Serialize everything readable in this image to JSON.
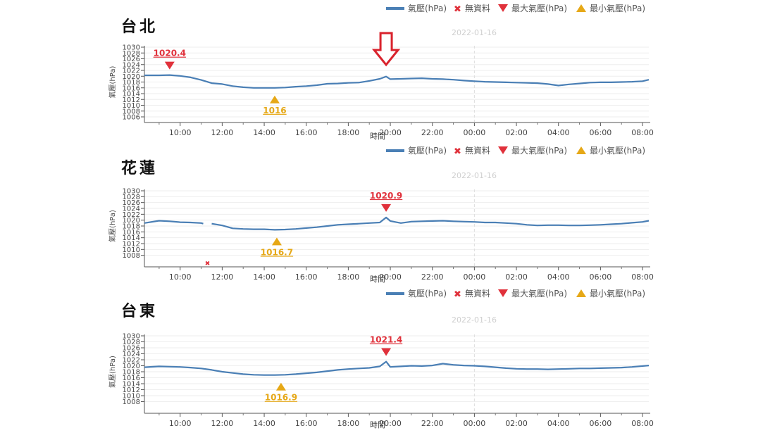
{
  "legend": {
    "series": "氣壓(hPa)",
    "missing": "無資料",
    "max": "最大氣壓(hPa)",
    "min": "最小氣壓(hPa)"
  },
  "colors": {
    "line": "#4a7fb5",
    "max": "#e0313b",
    "min": "#e6a817",
    "missing": "#e0313b"
  },
  "chart_data": [
    {
      "type": "line",
      "station": "台北",
      "date_label": "2022-01-16",
      "xlabel": "時間",
      "ylabel": "氣壓(hPa)",
      "xticks": [
        "10:00",
        "12:00",
        "14:00",
        "16:00",
        "18:00",
        "20:00",
        "22:00",
        "00:00",
        "02:00",
        "04:00",
        "06:00",
        "08:00"
      ],
      "yticks": [
        1006,
        1008,
        1010,
        1012,
        1014,
        1016,
        1018,
        1020,
        1022,
        1024,
        1026,
        1028,
        1030
      ],
      "xlim": [
        8.3,
        32.3
      ],
      "ylim": [
        1006,
        1030
      ],
      "x": [
        8.3,
        9.0,
        9.5,
        10.0,
        10.5,
        11.0,
        11.5,
        12.0,
        12.5,
        13.0,
        13.5,
        14.0,
        14.5,
        15.0,
        15.5,
        16.0,
        16.5,
        17.0,
        17.5,
        18.0,
        18.5,
        19.0,
        19.5,
        19.8,
        20.0,
        20.5,
        21.0,
        21.5,
        22.0,
        22.5,
        23.0,
        23.5,
        24.0,
        24.5,
        25.0,
        25.5,
        26.0,
        26.5,
        27.0,
        27.5,
        28.0,
        28.5,
        29.0,
        29.5,
        30.0,
        30.5,
        31.0,
        31.5,
        32.0,
        32.3
      ],
      "values": [
        1020.3,
        1020.3,
        1020.4,
        1020.1,
        1019.6,
        1018.7,
        1017.6,
        1017.3,
        1016.6,
        1016.2,
        1016.0,
        1016.0,
        1016.0,
        1016.1,
        1016.4,
        1016.6,
        1016.9,
        1017.4,
        1017.5,
        1017.7,
        1017.8,
        1018.4,
        1019.1,
        1019.9,
        1019.0,
        1019.1,
        1019.2,
        1019.3,
        1019.1,
        1019.0,
        1018.8,
        1018.5,
        1018.3,
        1018.1,
        1018.0,
        1017.9,
        1017.8,
        1017.7,
        1017.6,
        1017.3,
        1016.8,
        1017.2,
        1017.5,
        1017.8,
        1017.9,
        1017.9,
        1018.0,
        1018.1,
        1018.3,
        1018.8
      ],
      "max": {
        "label": "1020.4",
        "x": 9.5,
        "value": 1020.4
      },
      "min": {
        "label": "1016",
        "x": 14.5,
        "value": 1016.0
      },
      "highlight_arrow": {
        "x": 19.8
      },
      "missing": []
    },
    {
      "type": "line",
      "station": "花蓮",
      "date_label": "2022-01-16",
      "xlabel": "時間",
      "ylabel": "氣壓(hPa)",
      "xticks": [
        "10:00",
        "12:00",
        "14:00",
        "16:00",
        "18:00",
        "20:00",
        "22:00",
        "00:00",
        "02:00",
        "04:00",
        "06:00",
        "08:00"
      ],
      "yticks": [
        1008,
        1010,
        1012,
        1014,
        1016,
        1018,
        1020,
        1022,
        1024,
        1026,
        1028,
        1030
      ],
      "xlim": [
        8.3,
        32.3
      ],
      "ylim": [
        1006,
        1030
      ],
      "x": [
        8.3,
        9.0,
        9.5,
        10.0,
        10.5,
        11.0,
        11.1,
        null,
        11.5,
        12.0,
        12.5,
        13.0,
        13.5,
        14.0,
        14.5,
        15.0,
        15.5,
        16.0,
        16.5,
        17.0,
        17.5,
        18.0,
        18.5,
        19.0,
        19.5,
        19.8,
        20.0,
        20.5,
        21.0,
        21.5,
        22.0,
        22.5,
        23.0,
        23.5,
        24.0,
        24.5,
        25.0,
        25.5,
        26.0,
        26.5,
        27.0,
        27.5,
        28.0,
        28.5,
        29.0,
        29.5,
        30.0,
        30.5,
        31.0,
        31.5,
        32.0,
        32.3
      ],
      "values": [
        1019.0,
        1019.8,
        1019.6,
        1019.3,
        1019.2,
        1019.0,
        1018.8,
        null,
        1018.8,
        1018.2,
        1017.2,
        1017.0,
        1016.9,
        1016.9,
        1016.7,
        1016.8,
        1017.0,
        1017.3,
        1017.6,
        1018.0,
        1018.4,
        1018.6,
        1018.8,
        1019.0,
        1019.2,
        1020.9,
        1019.7,
        1019.0,
        1019.5,
        1019.6,
        1019.7,
        1019.8,
        1019.6,
        1019.5,
        1019.4,
        1019.2,
        1019.2,
        1019.0,
        1018.8,
        1018.4,
        1018.2,
        1018.3,
        1018.3,
        1018.2,
        1018.2,
        1018.3,
        1018.4,
        1018.6,
        1018.8,
        1019.1,
        1019.4,
        1019.8
      ],
      "max": {
        "label": "1020.9",
        "x": 19.8,
        "value": 1020.9
      },
      "min": {
        "label": "1016.7",
        "x": 14.6,
        "value": 1016.7
      },
      "missing": [
        {
          "x": 11.3
        }
      ]
    },
    {
      "type": "line",
      "station": "台東",
      "date_label": "2022-01-16",
      "xlabel": "時間",
      "ylabel": "氣壓(hPa)",
      "xticks": [
        "10:00",
        "12:00",
        "14:00",
        "16:00",
        "18:00",
        "20:00",
        "22:00",
        "00:00",
        "02:00",
        "04:00",
        "06:00",
        "08:00"
      ],
      "yticks": [
        1008,
        1010,
        1012,
        1014,
        1016,
        1018,
        1020,
        1022,
        1024,
        1026,
        1028,
        1030
      ],
      "xlim": [
        8.3,
        32.3
      ],
      "ylim": [
        1006,
        1030
      ],
      "x": [
        8.3,
        9.0,
        9.5,
        10.0,
        10.5,
        11.0,
        11.5,
        12.0,
        12.5,
        13.0,
        13.5,
        14.0,
        14.5,
        15.0,
        15.5,
        16.0,
        16.5,
        17.0,
        17.5,
        18.0,
        18.5,
        19.0,
        19.5,
        19.8,
        20.0,
        20.5,
        21.0,
        21.5,
        22.0,
        22.5,
        23.0,
        23.5,
        24.0,
        24.5,
        25.0,
        25.5,
        26.0,
        26.5,
        27.0,
        27.5,
        28.0,
        28.5,
        29.0,
        29.5,
        30.0,
        30.5,
        31.0,
        31.5,
        32.0,
        32.3
      ],
      "values": [
        1019.5,
        1019.8,
        1019.7,
        1019.6,
        1019.4,
        1019.1,
        1018.6,
        1018.0,
        1017.6,
        1017.2,
        1017.0,
        1016.9,
        1016.9,
        1017.0,
        1017.2,
        1017.5,
        1017.8,
        1018.2,
        1018.6,
        1018.9,
        1019.1,
        1019.3,
        1019.8,
        1021.4,
        1019.6,
        1019.8,
        1020.0,
        1019.9,
        1020.1,
        1020.7,
        1020.3,
        1020.1,
        1020.0,
        1019.8,
        1019.5,
        1019.2,
        1019.0,
        1018.9,
        1018.9,
        1018.8,
        1018.9,
        1019.0,
        1019.1,
        1019.1,
        1019.2,
        1019.3,
        1019.4,
        1019.6,
        1019.9,
        1020.1
      ],
      "max": {
        "label": "1021.4",
        "x": 19.8,
        "value": 1021.4
      },
      "min": {
        "label": "1016.9",
        "x": 14.8,
        "value": 1016.9
      },
      "missing": []
    }
  ]
}
